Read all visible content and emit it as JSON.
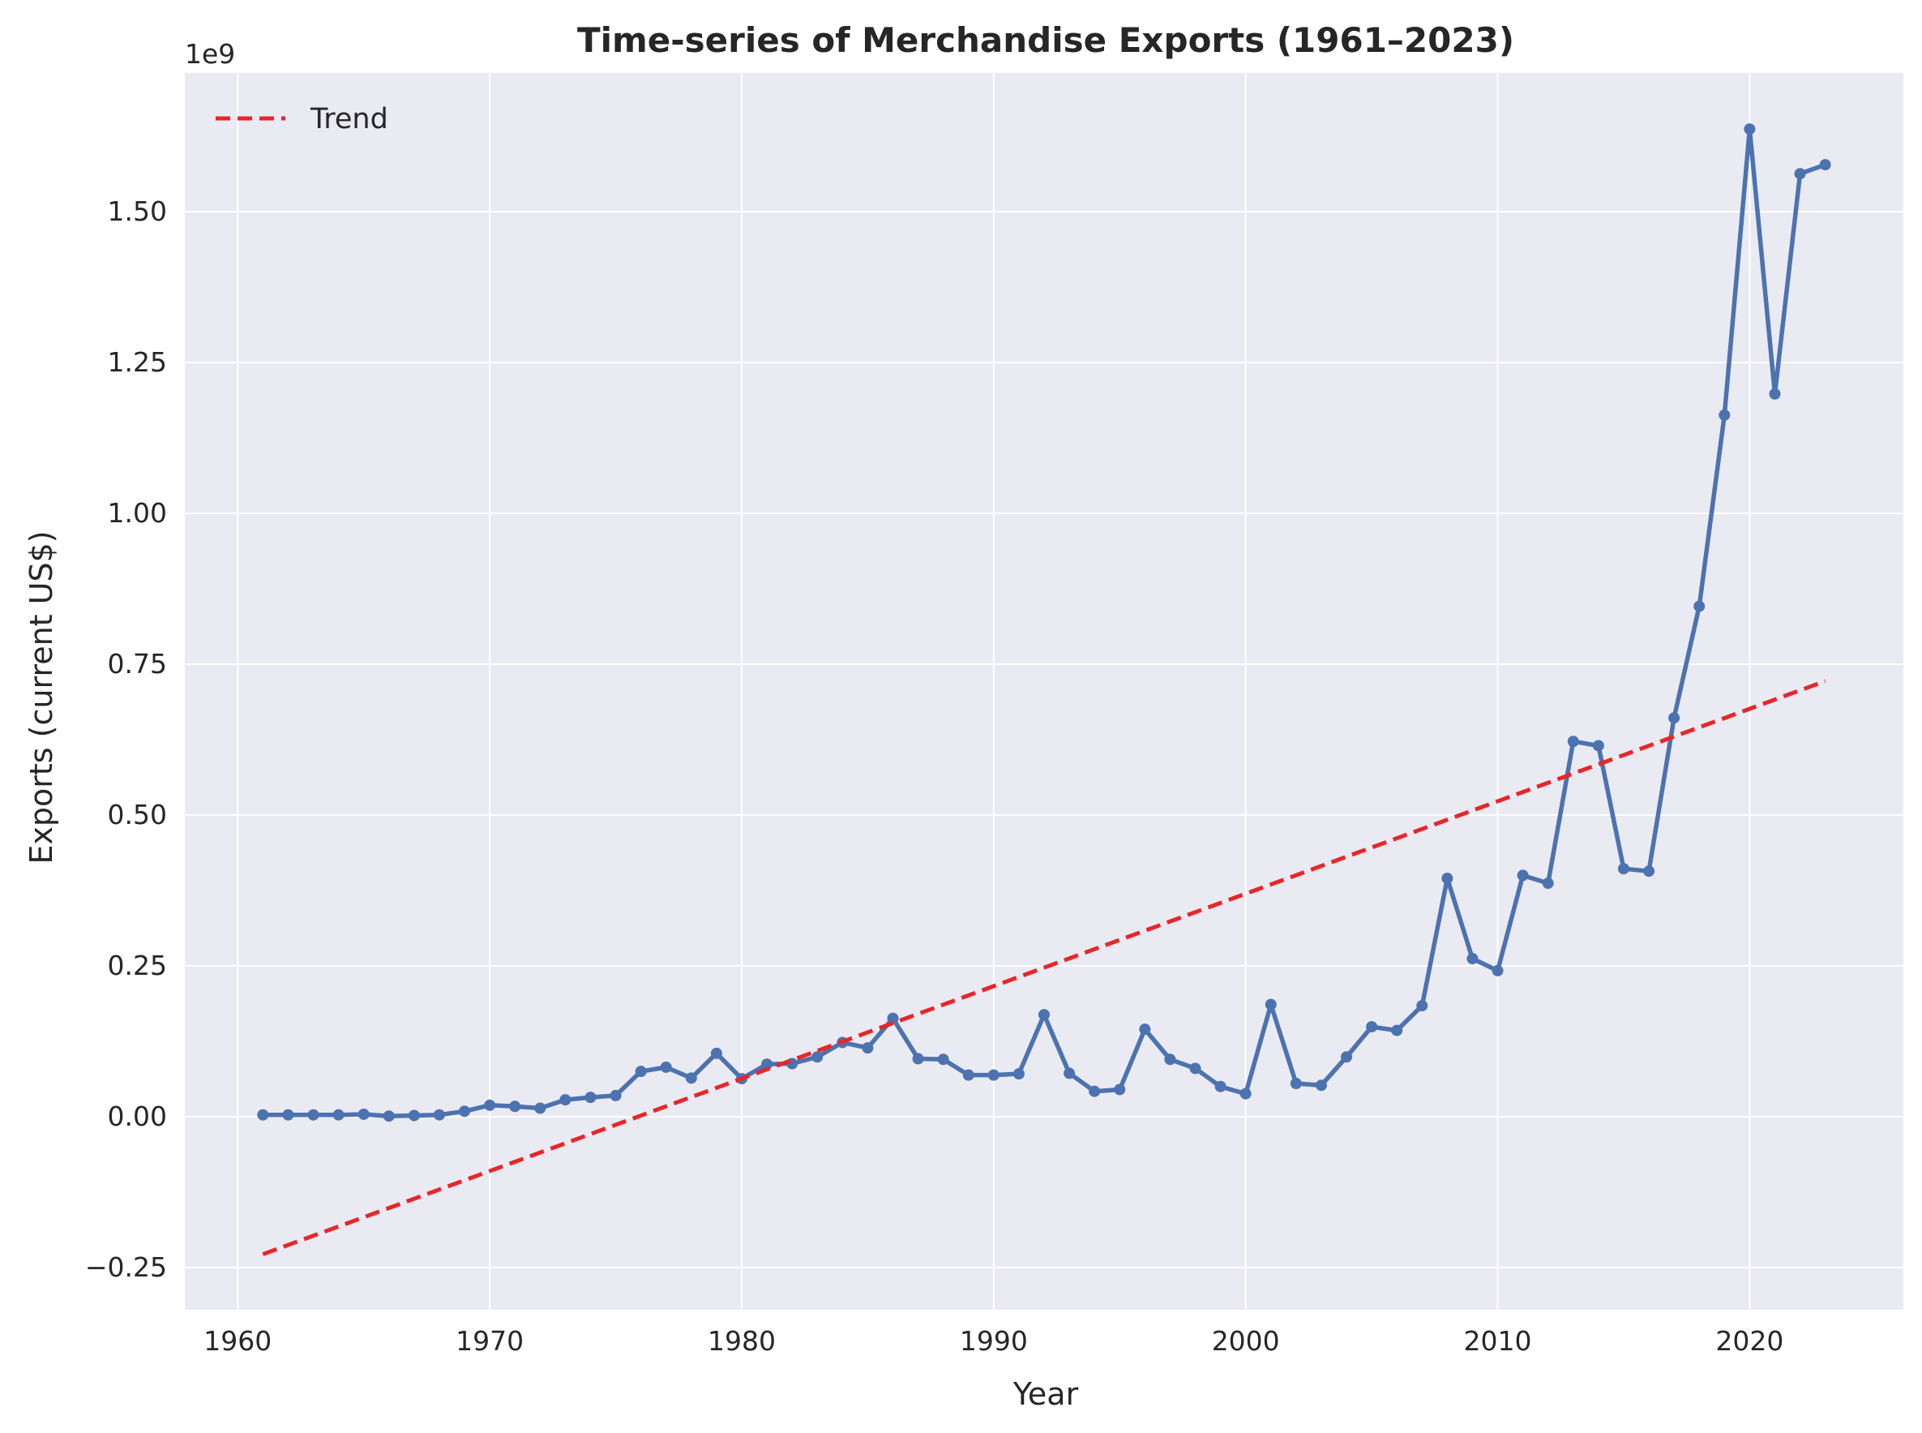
{
  "chart_data": {
    "type": "line",
    "title": "Time-series of Merchandise Exports (1961–2023)",
    "xlabel": "Year",
    "ylabel": "Exports (current US$)",
    "y_offset_label": "1e9",
    "y_scale_factor": 1000000000,
    "xlim": [
      1957.9,
      2026.1
    ],
    "ylim": [
      -0.32,
      1.73
    ],
    "x_ticks": [
      1960,
      1970,
      1980,
      1990,
      2000,
      2010,
      2020
    ],
    "y_ticks": [
      -0.25,
      0.0,
      0.25,
      0.5,
      0.75,
      1.0,
      1.25,
      1.5
    ],
    "y_tick_labels": [
      "−0.25",
      "0.00",
      "0.25",
      "0.50",
      "0.75",
      "1.00",
      "1.25",
      "1.50"
    ],
    "grid": true,
    "legend_position": "top-left",
    "background_color": "#eaeaf2",
    "series": [
      {
        "color": "#4c72b0",
        "style": "solid-with-markers",
        "x": [
          1961,
          1962,
          1963,
          1964,
          1965,
          1966,
          1967,
          1968,
          1969,
          1970,
          1971,
          1972,
          1973,
          1974,
          1975,
          1976,
          1977,
          1978,
          1979,
          1980,
          1981,
          1982,
          1983,
          1984,
          1985,
          1986,
          1987,
          1988,
          1989,
          1990,
          1991,
          1992,
          1993,
          1994,
          1995,
          1996,
          1997,
          1998,
          1999,
          2000,
          2001,
          2002,
          2003,
          2004,
          2005,
          2006,
          2007,
          2008,
          2009,
          2010,
          2011,
          2012,
          2013,
          2014,
          2015,
          2016,
          2017,
          2018,
          2019,
          2020,
          2021,
          2022,
          2023
        ],
        "values": [
          0.003,
          0.003,
          0.003,
          0.003,
          0.004,
          0.001,
          0.002,
          0.003,
          0.009,
          0.019,
          0.017,
          0.014,
          0.028,
          0.032,
          0.035,
          0.075,
          0.082,
          0.064,
          0.105,
          0.063,
          0.087,
          0.088,
          0.099,
          0.123,
          0.114,
          0.163,
          0.096,
          0.095,
          0.069,
          0.069,
          0.071,
          0.169,
          0.072,
          0.042,
          0.045,
          0.145,
          0.095,
          0.08,
          0.05,
          0.038,
          0.186,
          0.055,
          0.052,
          0.099,
          0.149,
          0.143,
          0.184,
          0.395,
          0.262,
          0.242,
          0.4,
          0.387,
          0.622,
          0.615,
          0.411,
          0.407,
          0.661,
          0.846,
          1.163,
          1.637,
          1.198,
          1.563,
          1.578
        ]
      },
      {
        "name": "Trend",
        "color": "#e8262a",
        "style": "dashed",
        "x": [
          1961,
          2023
        ],
        "values": [
          -0.228,
          0.722
        ]
      }
    ]
  }
}
